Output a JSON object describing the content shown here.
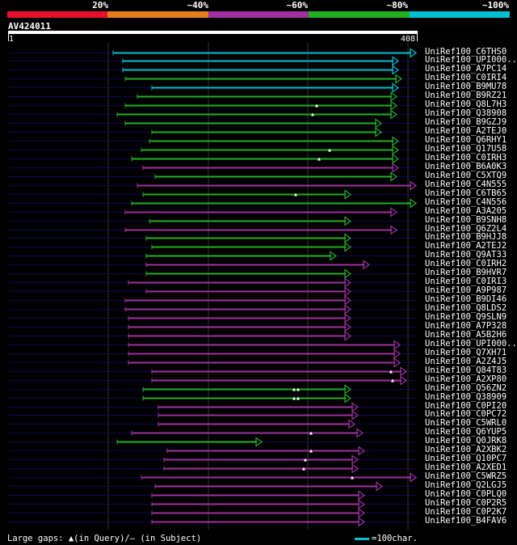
{
  "colors": {
    "red": "#e8112d",
    "orange": "#e67e1c",
    "purple": "#a030a0",
    "green": "#22b022",
    "cyan": "#00c0d0",
    "background_line": "#0a0a55",
    "grid": "#333333"
  },
  "scale": {
    "segments": [
      "red",
      "orange",
      "purple",
      "green",
      "cyan"
    ],
    "labels": [
      "20%",
      "~40%",
      "~60%",
      "~80%",
      "~100%"
    ]
  },
  "query": {
    "name": "AV424011",
    "start": "1",
    "end": "408"
  },
  "hits": [
    {
      "name": "UniRef100_C6THS0",
      "start": 140,
      "end": 515,
      "color": "cyan",
      "gaps": []
    },
    {
      "name": "UniRef100_UPI000..",
      "start": 152,
      "end": 493,
      "color": "cyan",
      "gaps": []
    },
    {
      "name": "UniRef100_A7PC14",
      "start": 152,
      "end": 493,
      "color": "cyan",
      "gaps": []
    },
    {
      "name": "UniRef100_C0IRI4",
      "start": 155,
      "end": 497,
      "color": "green",
      "gaps": []
    },
    {
      "name": "UniRef100_B9MU78",
      "start": 188,
      "end": 493,
      "color": "cyan",
      "gaps": []
    },
    {
      "name": "UniRef100_B9RZ21",
      "start": 170,
      "end": 491,
      "color": "green",
      "gaps": []
    },
    {
      "name": "UniRef100_Q8L7H3",
      "start": 155,
      "end": 491,
      "color": "green",
      "gaps": [
        {
          "x": 392
        }
      ]
    },
    {
      "name": "UniRef100_Q38908",
      "start": 145,
      "end": 491,
      "color": "green",
      "gaps": [
        {
          "x": 387
        }
      ]
    },
    {
      "name": "UniRef100_B9GZJ9",
      "start": 155,
      "end": 472,
      "color": "green",
      "gaps": []
    },
    {
      "name": "UniRef100_A2TEJ0",
      "start": 188,
      "end": 472,
      "color": "green",
      "gaps": []
    },
    {
      "name": "UniRef100_Q6RHY1",
      "start": 185,
      "end": 493,
      "color": "green",
      "gaps": []
    },
    {
      "name": "UniRef100_Q17U58",
      "start": 175,
      "end": 493,
      "color": "green",
      "gaps": [
        {
          "x": 408
        }
      ]
    },
    {
      "name": "UniRef100_C0IRH3",
      "start": 163,
      "end": 493,
      "color": "green",
      "gaps": [
        {
          "x": 395
        }
      ]
    },
    {
      "name": "UniRef100_B6A0K3",
      "start": 177,
      "end": 493,
      "color": "purple",
      "gaps": []
    },
    {
      "name": "UniRef100_C5XTQ9",
      "start": 192,
      "end": 491,
      "color": "green",
      "gaps": []
    },
    {
      "name": "UniRef100_C4N555",
      "start": 170,
      "end": 515,
      "color": "purple",
      "gaps": []
    },
    {
      "name": "UniRef100_C6TB65",
      "start": 177,
      "end": 434,
      "color": "green",
      "gaps": [
        {
          "x": 366
        }
      ]
    },
    {
      "name": "UniRef100_C4N556",
      "start": 163,
      "end": 515,
      "color": "green",
      "gaps": []
    },
    {
      "name": "UniRef100_A3A205",
      "start": 155,
      "end": 491,
      "color": "purple",
      "gaps": []
    },
    {
      "name": "UniRef100_B9SNH8",
      "start": 185,
      "end": 434,
      "color": "green",
      "gaps": []
    },
    {
      "name": "UniRef100_Q6Z2L4",
      "start": 155,
      "end": 491,
      "color": "purple",
      "gaps": []
    },
    {
      "name": "UniRef100_B9HJJ8",
      "start": 181,
      "end": 434,
      "color": "green",
      "gaps": []
    },
    {
      "name": "UniRef100_A2TEJ2",
      "start": 188,
      "end": 434,
      "color": "green",
      "gaps": []
    },
    {
      "name": "UniRef100_Q9AT33",
      "start": 181,
      "end": 416,
      "color": "green",
      "gaps": []
    },
    {
      "name": "UniRef100_C0IRH2",
      "start": 181,
      "end": 457,
      "color": "purple",
      "gaps": []
    },
    {
      "name": "UniRef100_B9HVR7",
      "start": 181,
      "end": 434,
      "color": "green",
      "gaps": []
    },
    {
      "name": "UniRef100_C0IRI3",
      "start": 159,
      "end": 434,
      "color": "purple",
      "gaps": []
    },
    {
      "name": "UniRef100_A9P987",
      "start": 181,
      "end": 434,
      "color": "purple",
      "gaps": []
    },
    {
      "name": "UniRef100_B9DI46",
      "start": 155,
      "end": 434,
      "color": "purple",
      "gaps": []
    },
    {
      "name": "UniRef100_Q8LDS2",
      "start": 155,
      "end": 434,
      "color": "purple",
      "gaps": []
    },
    {
      "name": "UniRef100_Q9SLN9",
      "start": 159,
      "end": 434,
      "color": "purple",
      "gaps": []
    },
    {
      "name": "UniRef100_A7P328",
      "start": 159,
      "end": 434,
      "color": "purple",
      "gaps": []
    },
    {
      "name": "UniRef100_A5B2H6",
      "start": 159,
      "end": 434,
      "color": "purple",
      "gaps": []
    },
    {
      "name": "UniRef100_UPI000..",
      "start": 159,
      "end": 495,
      "color": "purple",
      "gaps": []
    },
    {
      "name": "UniRef100_Q7XH71",
      "start": 159,
      "end": 495,
      "color": "purple",
      "gaps": []
    },
    {
      "name": "UniRef100_A2Z4J5",
      "start": 159,
      "end": 495,
      "color": "purple",
      "gaps": []
    },
    {
      "name": "UniRef100_Q84T83",
      "start": 188,
      "end": 503,
      "color": "purple",
      "gaps": [
        {
          "x": 484
        }
      ]
    },
    {
      "name": "UniRef100_A2XP80",
      "start": 188,
      "end": 503,
      "color": "purple",
      "gaps": [
        {
          "x": 486
        }
      ]
    },
    {
      "name": "UniRef100_Q56ZN2",
      "start": 177,
      "end": 434,
      "color": "green",
      "gaps": [
        {
          "x": 364
        },
        {
          "x": 369
        }
      ]
    },
    {
      "name": "UniRef100_Q38909",
      "start": 177,
      "end": 434,
      "color": "green",
      "gaps": [
        {
          "x": 364
        },
        {
          "x": 369
        }
      ]
    },
    {
      "name": "UniRef100_C0PI20",
      "start": 196,
      "end": 443,
      "color": "purple",
      "gaps": []
    },
    {
      "name": "UniRef100_C0PC72",
      "start": 196,
      "end": 443,
      "color": "purple",
      "gaps": []
    },
    {
      "name": "UniRef100_C5WRL0",
      "start": 196,
      "end": 439,
      "color": "purple",
      "gaps": []
    },
    {
      "name": "UniRef100_Q6YUP5",
      "start": 163,
      "end": 449,
      "color": "purple",
      "gaps": [
        {
          "x": 385
        }
      ]
    },
    {
      "name": "UniRef100_Q0JRK8",
      "start": 145,
      "end": 324,
      "color": "green",
      "gaps": []
    },
    {
      "name": "UniRef100_A2XBK2",
      "start": 207,
      "end": 451,
      "color": "purple",
      "gaps": [
        {
          "x": 385
        }
      ]
    },
    {
      "name": "UniRef100_Q10PC7",
      "start": 203,
      "end": 443,
      "color": "purple",
      "gaps": [
        {
          "x": 378
        }
      ]
    },
    {
      "name": "UniRef100_A2XED1",
      "start": 203,
      "end": 443,
      "color": "purple",
      "gaps": [
        {
          "x": 376
        }
      ]
    },
    {
      "name": "UniRef100_C5WRZ5",
      "start": 175,
      "end": 515,
      "color": "purple",
      "gaps": [
        {
          "x": 436
        }
      ]
    },
    {
      "name": "UniRef100_Q2LGJ5",
      "start": 192,
      "end": 473,
      "color": "purple",
      "gaps": []
    },
    {
      "name": "UniRef100_C0PLQ0",
      "start": 188,
      "end": 451,
      "color": "purple",
      "gaps": []
    },
    {
      "name": "UniRef100_C0P2R5",
      "start": 188,
      "end": 451,
      "color": "purple",
      "gaps": []
    },
    {
      "name": "UniRef100_C0P2K7",
      "start": 188,
      "end": 451,
      "color": "purple",
      "gaps": []
    },
    {
      "name": "UniRef100_B4FAV6",
      "start": 188,
      "end": 451,
      "color": "purple",
      "gaps": []
    }
  ],
  "legend": {
    "gaps_text": "Large gaps: ▲(in Query)/– (in Subject)",
    "scale_text": "=100char."
  }
}
